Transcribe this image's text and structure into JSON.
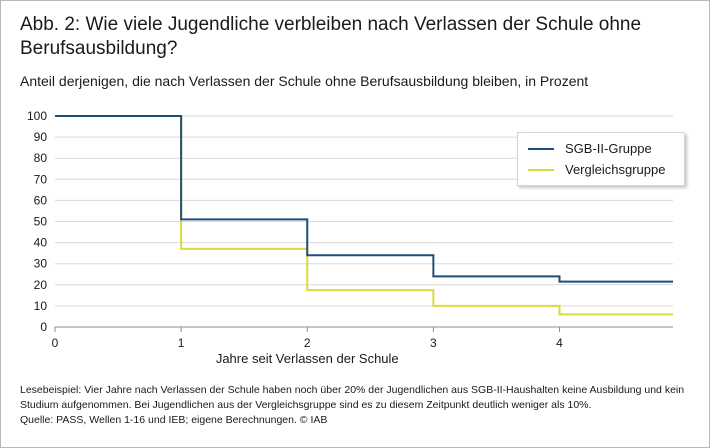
{
  "figure": {
    "title": "Abb. 2: Wie viele Jugendliche verbleiben nach Verlassen der Schule ohne Berufsausbildung?",
    "subtitle": "Anteil derjenigen, die nach Verlassen der Schule ohne Berufsausbildung bleiben, in Prozent",
    "note": "Lesebeispiel: Vier Jahre nach Verlassen der Schule haben noch über 20% der Jugendlichen aus SGB-II-Haushalten keine Ausbildung und kein Studium aufgenommen. Bei Jugendlichen aus der Vergleichsgruppe sind es zu diesem Zeitpunkt deutlich weniger als 10%.",
    "source": "Quelle: PASS, Wellen 1-16 und IEB; eigene Berechnungen.  © IAB"
  },
  "chart_data": {
    "type": "line",
    "step": "post",
    "xlabel": "Jahre seit Verlassen der Schule",
    "ylabel": "",
    "xlim": [
      0,
      4.9
    ],
    "ylim": [
      0,
      100
    ],
    "xticks": [
      0,
      1,
      2,
      3,
      4
    ],
    "yticks": [
      0,
      10,
      20,
      30,
      40,
      50,
      60,
      70,
      80,
      90,
      100
    ],
    "grid": "horizontal",
    "legend_position": "top-right",
    "series": [
      {
        "name": "SGB-II-Gruppe",
        "color": "#1f4e79",
        "x": [
          0,
          1,
          2,
          3,
          4,
          4.9
        ],
        "y": [
          100,
          51,
          34,
          24,
          21.5,
          21.5
        ]
      },
      {
        "name": "Vergleichsgruppe",
        "color": "#d6dc3c",
        "x": [
          0,
          1,
          2,
          3,
          4,
          4.9
        ],
        "y": [
          100,
          37,
          17.5,
          10,
          6,
          6
        ]
      }
    ]
  }
}
